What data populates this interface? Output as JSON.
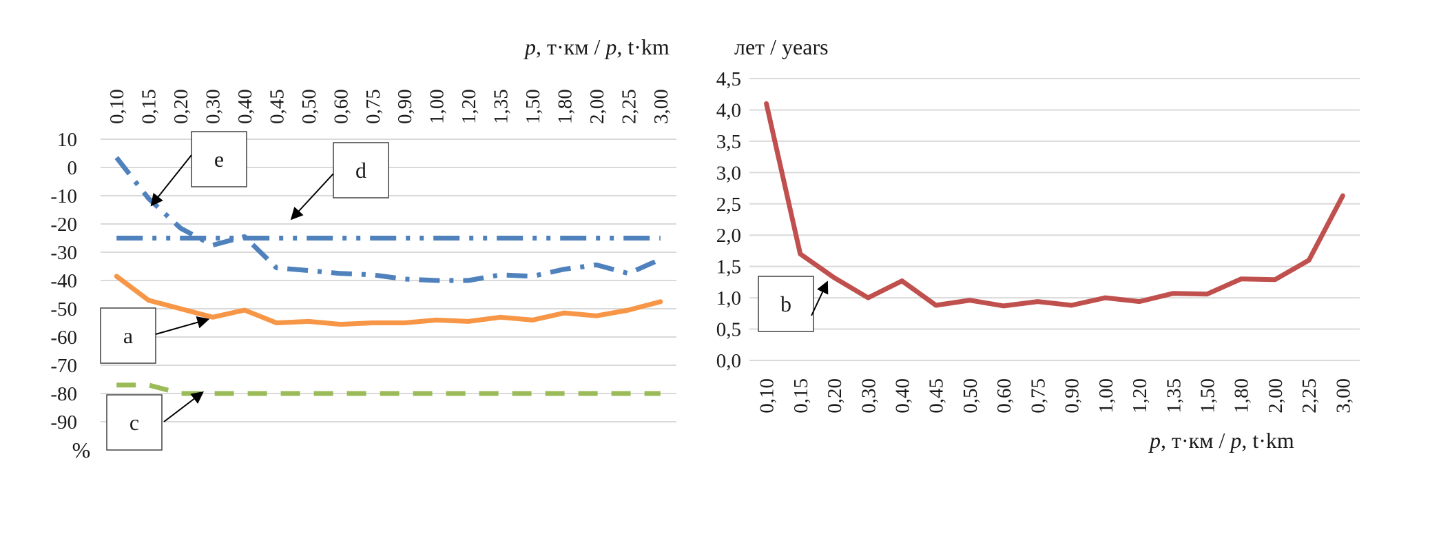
{
  "chart_data": [
    {
      "type": "line",
      "categories": [
        "0,10",
        "0,15",
        "0,20",
        "0,30",
        "0,40",
        "0,45",
        "0,50",
        "0,60",
        "0,75",
        "0,90",
        "1,00",
        "1,20",
        "1,35",
        "1,50",
        "1,80",
        "2,00",
        "2,25",
        "3,00"
      ],
      "x_axis_title": "p, т·км / p, t·km",
      "x_axis_position": "top",
      "y_unit": "%",
      "y_ticks": [
        "10",
        "0",
        "-10",
        "-20",
        "-30",
        "-40",
        "-50",
        "-60",
        "-70",
        "-80",
        "-90"
      ],
      "ylim": [
        -90,
        10
      ],
      "grid": true,
      "series": [
        {
          "label": "a",
          "color": "#f79646",
          "style": "solid",
          "values": [
            -38.5,
            -47,
            -50,
            -53,
            -50.5,
            -55,
            -54.5,
            -55.5,
            -55,
            -55,
            -54,
            -54.5,
            -53,
            -54,
            -51.5,
            -52.5,
            -50.5,
            -47.5
          ]
        },
        {
          "label": "c",
          "color": "#9bbb59",
          "style": "dashed",
          "values": [
            -77,
            -77,
            -80,
            -80,
            -80,
            -80,
            -80,
            -80,
            -80,
            -80,
            -80,
            -80,
            -80,
            -80,
            -80,
            -80,
            -80,
            -80
          ]
        },
        {
          "label": "d",
          "color": "#4f81bd",
          "style": "dash-dot-dot",
          "values": [
            -25,
            -25,
            -25,
            -25,
            -25,
            -25,
            -25,
            -25,
            -25,
            -25,
            -25,
            -25,
            -25,
            -25,
            -25,
            -25,
            -25,
            -25
          ]
        },
        {
          "label": "e",
          "color": "#4f81bd",
          "style": "dash-dot",
          "values": [
            3.5,
            -11,
            -21.5,
            -27.5,
            -24.5,
            -35.5,
            -36.5,
            -37.5,
            -38,
            -39.5,
            -40,
            -40,
            -38,
            -38.5,
            -36,
            -34.5,
            -37.5,
            -32.5
          ]
        }
      ]
    },
    {
      "type": "line",
      "categories": [
        "0,10",
        "0,15",
        "0,20",
        "0,30",
        "0,40",
        "0,45",
        "0,50",
        "0,60",
        "0,75",
        "0,90",
        "1,00",
        "1,20",
        "1,35",
        "1,50",
        "1,80",
        "2,00",
        "2,25",
        "3,00"
      ],
      "x_axis_title": "p, т·км / p, t·km",
      "x_axis_position": "bottom",
      "y_axis_title": "лет / years",
      "y_ticks": [
        "4,5",
        "4,0",
        "3,5",
        "3,0",
        "2,5",
        "2,0",
        "1,5",
        "1,0",
        "0,5",
        "0,0"
      ],
      "ylim": [
        0,
        4.5
      ],
      "grid": true,
      "series": [
        {
          "label": "b",
          "color": "#c0504d",
          "style": "solid",
          "values": [
            4.1,
            1.7,
            1.32,
            1.0,
            1.27,
            0.88,
            0.96,
            0.87,
            0.94,
            0.88,
            1.0,
            0.94,
            1.07,
            1.06,
            1.3,
            1.29,
            1.6,
            2.63
          ]
        }
      ]
    }
  ]
}
